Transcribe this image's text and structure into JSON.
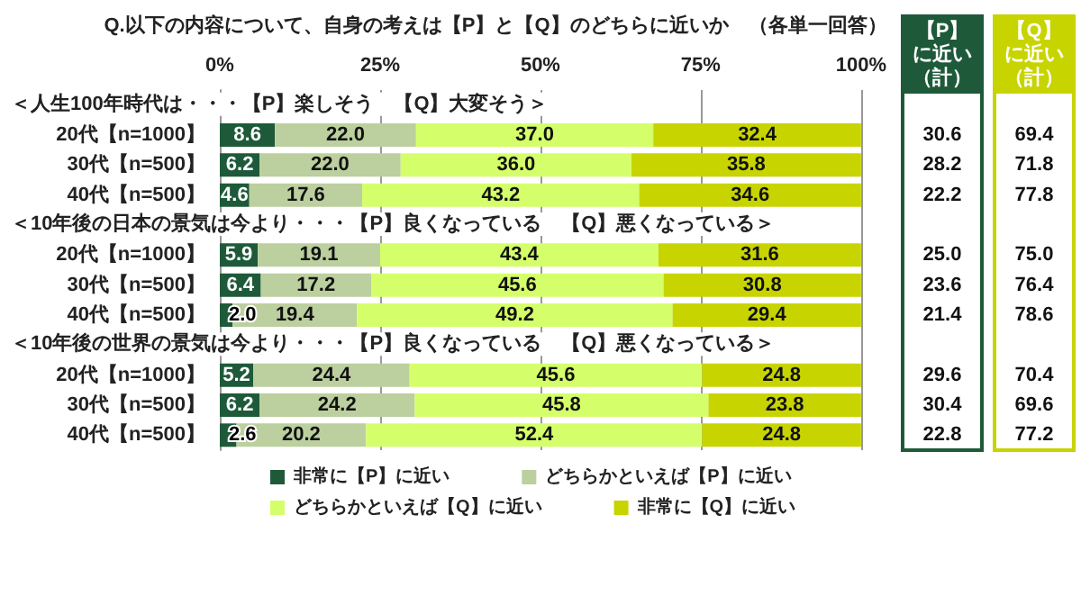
{
  "chart_data": [
    {
      "type": "bar",
      "orientation": "horizontal",
      "stacked": true,
      "title": "Q.以下の内容について、自身の考えは【P】と【Q】のどちらに近いか　（各単一回答）",
      "categories": [
        null,
        "20代【n=1000】",
        "30代【n=500】",
        "40代【n=500】",
        null,
        "20代【n=1000】",
        "30代【n=500】",
        "40代【n=500】",
        null,
        "20代【n=1000】",
        "30代【n=500】",
        "40代【n=500】"
      ],
      "annotations": [
        "＜人生100年時代は・・・【P】楽しそう　【Q】大変そう＞",
        "＜10年後の日本の景気は今より・・・【P】良くなっている　【Q】悪くなっている＞",
        "＜10年後の世界の景気は今より・・・【P】良くなっている　【Q】悪くなっている＞"
      ],
      "series": [
        {
          "name": "非常に【P】に近い",
          "color": "#1e5a3a",
          "values": [
            null,
            8.6,
            6.2,
            4.6,
            null,
            5.9,
            6.4,
            2.0,
            null,
            5.2,
            6.2,
            2.6
          ],
          "value_labels": [
            null,
            "8.6",
            "6.2",
            "4.6",
            null,
            "5.9",
            "6.4",
            "2.0",
            null,
            "5.2",
            "6.2",
            "2.6"
          ]
        },
        {
          "name": "どちらかといえば【P】に近い",
          "color": "#bccf9e",
          "values": [
            null,
            22.0,
            22.0,
            17.6,
            null,
            19.1,
            17.2,
            19.4,
            null,
            24.4,
            24.2,
            20.2
          ],
          "value_labels": [
            null,
            "22.0",
            "22.0",
            "17.6",
            null,
            "19.1",
            "17.2",
            "19.4",
            null,
            "24.4",
            "24.2",
            "20.2"
          ]
        },
        {
          "name": "どちらかといえば【Q】に近い",
          "color": "#d4ff6a",
          "values": [
            null,
            37.0,
            36.0,
            43.2,
            null,
            43.4,
            45.6,
            49.2,
            null,
            45.6,
            45.8,
            52.4
          ],
          "value_labels": [
            null,
            "37.0",
            "36.0",
            "43.2",
            null,
            "43.4",
            "45.6",
            "49.2",
            null,
            "45.6",
            "45.8",
            "52.4"
          ]
        },
        {
          "name": "非常に【Q】に近い",
          "color": "#c8d400",
          "values": [
            null,
            32.4,
            35.8,
            34.6,
            null,
            31.6,
            30.8,
            29.4,
            null,
            24.8,
            23.8,
            24.8
          ],
          "value_labels": [
            null,
            "32.4",
            "35.8",
            "34.6",
            null,
            "31.6",
            "30.8",
            "29.4",
            null,
            "24.8",
            "23.8",
            "24.8"
          ]
        }
      ],
      "xlim": [
        0,
        100
      ],
      "xticks": [
        {
          "value": 0,
          "label": "0%"
        },
        {
          "value": 25,
          "label": "25%"
        },
        {
          "value": 50,
          "label": "50%"
        },
        {
          "value": 75,
          "label": "75%"
        },
        {
          "value": 100,
          "label": "100%"
        }
      ],
      "grid": "x",
      "legend": "bottom"
    },
    {
      "type": "other",
      "annotations": [
        "【P】に近い（計）",
        "【Q】に近い（計）",
        "30.6",
        "28.2",
        "22.2",
        "25.0",
        "23.6",
        "21.4",
        "29.6",
        "30.4",
        "22.8",
        "69.4",
        "71.8",
        "77.8",
        "75.0",
        "76.4",
        "78.6",
        "70.4",
        "69.6",
        "77.2"
      ]
    }
  ]
}
